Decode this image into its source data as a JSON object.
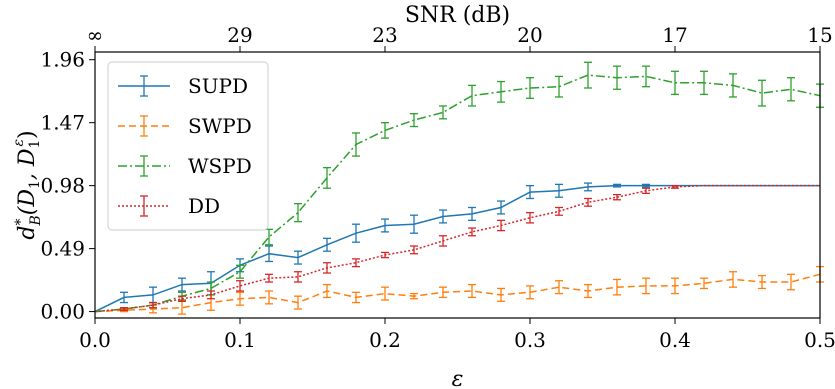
{
  "chart_data": {
    "type": "line",
    "xlabel": "ε",
    "ylabel": "d*B(D1, D1ε)",
    "ylabel_parts": {
      "main": "d",
      "sup": "*",
      "sub": "B",
      "args": "(D",
      "arg_sub1": "1",
      "comma": ", D",
      "arg_sub2": "1",
      "arg_sup2": "ε",
      "close": ")"
    },
    "top_xlabel": "SNR (dB)",
    "xlim": [
      0.0,
      0.5
    ],
    "ylim": [
      -0.05,
      2.02
    ],
    "xticks": [
      0.0,
      0.1,
      0.2,
      0.3,
      0.4,
      0.5
    ],
    "xtick_labels": [
      "0.0",
      "0.1",
      "0.2",
      "0.3",
      "0.4",
      "0.5"
    ],
    "yticks": [
      0.0,
      0.49,
      0.98,
      1.47,
      1.96
    ],
    "ytick_labels": [
      "0.00",
      "0.49",
      "0.98",
      "1.47",
      "1.96"
    ],
    "top_ticks_x": [
      0.0,
      0.1,
      0.2,
      0.3,
      0.4,
      0.5
    ],
    "top_tick_labels": [
      "∞",
      "29",
      "23",
      "20",
      "17",
      "15"
    ],
    "legend_position": "top-left",
    "x": [
      0.0,
      0.02,
      0.04,
      0.06,
      0.08,
      0.1,
      0.12,
      0.14,
      0.16,
      0.18,
      0.2,
      0.22,
      0.24,
      0.26,
      0.28,
      0.3,
      0.32,
      0.34,
      0.36,
      0.38,
      0.4,
      0.42,
      0.44,
      0.46,
      0.48,
      0.5
    ],
    "series": [
      {
        "name": "SUPD",
        "color": "#1f77b4",
        "dash": "",
        "values": [
          0.0,
          0.11,
          0.13,
          0.21,
          0.22,
          0.36,
          0.45,
          0.42,
          0.52,
          0.61,
          0.67,
          0.68,
          0.74,
          0.76,
          0.81,
          0.93,
          0.94,
          0.97,
          0.98,
          0.98,
          0.98,
          0.98,
          0.98,
          0.98,
          0.98,
          0.98
        ],
        "errors": [
          0.0,
          0.04,
          0.06,
          0.05,
          0.09,
          0.05,
          0.06,
          0.05,
          0.05,
          0.07,
          0.05,
          0.07,
          0.05,
          0.05,
          0.05,
          0.05,
          0.05,
          0.03,
          0.01,
          0.01,
          0.0,
          0.0,
          0.0,
          0.0,
          0.0,
          0.0
        ]
      },
      {
        "name": "SWPD",
        "color": "#ff7f0e",
        "dash": "7,4",
        "values": [
          0.0,
          0.01,
          0.02,
          0.03,
          0.07,
          0.1,
          0.11,
          0.07,
          0.16,
          0.11,
          0.14,
          0.12,
          0.15,
          0.16,
          0.13,
          0.15,
          0.19,
          0.16,
          0.19,
          0.2,
          0.2,
          0.22,
          0.25,
          0.23,
          0.23,
          0.29
        ],
        "errors": [
          0.0,
          0.01,
          0.03,
          0.05,
          0.06,
          0.05,
          0.05,
          0.05,
          0.05,
          0.04,
          0.05,
          0.02,
          0.04,
          0.05,
          0.05,
          0.05,
          0.05,
          0.05,
          0.06,
          0.06,
          0.06,
          0.04,
          0.06,
          0.05,
          0.06,
          0.06
        ]
      },
      {
        "name": "WSPD",
        "color": "#2ca02c",
        "dash": "9,3,2,3",
        "values": [
          0.0,
          0.02,
          0.05,
          0.12,
          0.18,
          0.31,
          0.58,
          0.77,
          1.04,
          1.3,
          1.41,
          1.49,
          1.55,
          1.68,
          1.71,
          1.74,
          1.75,
          1.84,
          1.82,
          1.83,
          1.78,
          1.78,
          1.76,
          1.7,
          1.73,
          1.68
        ],
        "errors": [
          0.0,
          0.01,
          0.02,
          0.03,
          0.05,
          0.05,
          0.06,
          0.07,
          0.08,
          0.09,
          0.06,
          0.05,
          0.05,
          0.08,
          0.08,
          0.08,
          0.08,
          0.1,
          0.09,
          0.08,
          0.09,
          0.09,
          0.09,
          0.1,
          0.09,
          0.09
        ]
      },
      {
        "name": "DD",
        "color": "#d62728",
        "dash": "2,2",
        "values": [
          0.0,
          0.02,
          0.05,
          0.1,
          0.13,
          0.2,
          0.26,
          0.27,
          0.34,
          0.38,
          0.44,
          0.48,
          0.55,
          0.62,
          0.67,
          0.73,
          0.78,
          0.85,
          0.89,
          0.94,
          0.97,
          0.98,
          0.98,
          0.98,
          0.98,
          0.98
        ],
        "errors": [
          0.0,
          0.01,
          0.02,
          0.02,
          0.03,
          0.04,
          0.03,
          0.04,
          0.04,
          0.03,
          0.02,
          0.03,
          0.04,
          0.03,
          0.04,
          0.04,
          0.03,
          0.03,
          0.02,
          0.02,
          0.01,
          0.0,
          0.0,
          0.0,
          0.0,
          0.0
        ]
      }
    ]
  }
}
